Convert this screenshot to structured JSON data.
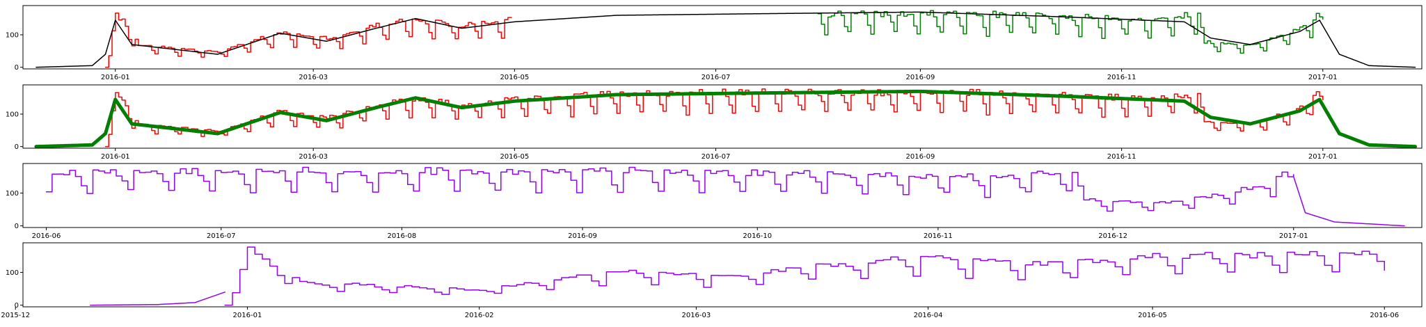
{
  "chart_data": [
    {
      "type": "line",
      "panel": 1,
      "ylim": [
        -5,
        190
      ],
      "yticks": [
        0,
        100
      ],
      "xaxis": {
        "unit": "date",
        "min": "2015-12-04",
        "max": "2017-01-31",
        "ticks": [
          "2016-01",
          "2016-03",
          "2016-05",
          "2016-07",
          "2016-09",
          "2016-11",
          "2017-01"
        ]
      },
      "series": [
        {
          "color": "#ff0000",
          "width": 1.5,
          "style": "weekly",
          "x_start": "2015-12-29",
          "x_end": "2016-04-30",
          "anchors": [
            [
              "2015-12-29",
              0
            ],
            [
              "2016-01-01",
              170
            ],
            [
              "2016-01-08",
              70
            ],
            [
              "2016-02-01",
              48
            ],
            [
              "2016-02-20",
              110
            ],
            [
              "2016-03-05",
              90
            ],
            [
              "2016-03-20",
              130
            ],
            [
              "2016-04-01",
              150
            ],
            [
              "2016-04-15",
              130
            ],
            [
              "2016-04-30",
              150
            ]
          ]
        },
        {
          "color": "#008000",
          "width": 1.5,
          "style": "weekly",
          "x_start": "2016-08-01",
          "x_end": "2017-01-01",
          "anchors": [
            [
              "2016-08-01",
              165
            ],
            [
              "2016-09-10",
              170
            ],
            [
              "2016-10-15",
              160
            ],
            [
              "2016-11-10",
              150
            ],
            [
              "2016-11-24",
              170
            ],
            [
              "2016-11-26",
              80
            ],
            [
              "2016-12-10",
              70
            ],
            [
              "2016-12-25",
              120
            ],
            [
              "2016-12-30",
              165
            ],
            [
              "2017-01-01",
              150
            ]
          ]
        },
        {
          "color": "#000000",
          "width": 1.5,
          "style": "smooth",
          "x_start": "2015-12-08",
          "x_end": "2017-01-29",
          "anchors": [
            [
              "2015-12-08",
              0
            ],
            [
              "2015-12-25",
              5
            ],
            [
              "2015-12-29",
              40
            ],
            [
              "2016-01-01",
              145
            ],
            [
              "2016-01-06",
              70
            ],
            [
              "2016-02-01",
              40
            ],
            [
              "2016-02-20",
              105
            ],
            [
              "2016-03-05",
              80
            ],
            [
              "2016-03-20",
              120
            ],
            [
              "2016-04-01",
              150
            ],
            [
              "2016-04-15",
              120
            ],
            [
              "2016-05-01",
              140
            ],
            [
              "2016-06-01",
              160
            ],
            [
              "2016-07-15",
              165
            ],
            [
              "2016-09-01",
              170
            ],
            [
              "2016-10-15",
              155
            ],
            [
              "2016-11-20",
              140
            ],
            [
              "2016-11-28",
              90
            ],
            [
              "2016-12-10",
              70
            ],
            [
              "2016-12-25",
              110
            ],
            [
              "2016-12-31",
              145
            ],
            [
              "2017-01-06",
              40
            ],
            [
              "2017-01-15",
              5
            ],
            [
              "2017-01-29",
              0
            ]
          ]
        }
      ]
    },
    {
      "type": "line",
      "panel": 2,
      "ylim": [
        -5,
        190
      ],
      "yticks": [
        0,
        100
      ],
      "xaxis": {
        "unit": "date",
        "min": "2015-12-04",
        "max": "2017-01-31",
        "ticks": [
          "2016-01",
          "2016-03",
          "2016-05",
          "2016-07",
          "2016-09",
          "2016-11",
          "2017-01"
        ]
      },
      "series": [
        {
          "color": "#ff0000",
          "width": 1.5,
          "style": "weekly",
          "x_start": "2015-12-29",
          "x_end": "2017-01-01",
          "anchors": [
            [
              "2015-12-29",
              0
            ],
            [
              "2016-01-01",
              170
            ],
            [
              "2016-01-08",
              70
            ],
            [
              "2016-02-01",
              48
            ],
            [
              "2016-02-20",
              110
            ],
            [
              "2016-03-05",
              90
            ],
            [
              "2016-03-20",
              130
            ],
            [
              "2016-04-01",
              150
            ],
            [
              "2016-04-15",
              130
            ],
            [
              "2016-05-01",
              150
            ],
            [
              "2016-06-01",
              165
            ],
            [
              "2016-07-15",
              170
            ],
            [
              "2016-09-10",
              170
            ],
            [
              "2016-10-15",
              160
            ],
            [
              "2016-11-10",
              150
            ],
            [
              "2016-11-24",
              170
            ],
            [
              "2016-11-26",
              80
            ],
            [
              "2016-12-10",
              70
            ],
            [
              "2016-12-25",
              120
            ],
            [
              "2016-12-30",
              165
            ],
            [
              "2017-01-01",
              150
            ]
          ]
        },
        {
          "color": "#008000",
          "width": 5,
          "style": "smooth",
          "x_start": "2015-12-08",
          "x_end": "2017-01-29",
          "anchors": [
            [
              "2015-12-08",
              0
            ],
            [
              "2015-12-25",
              5
            ],
            [
              "2015-12-29",
              40
            ],
            [
              "2016-01-01",
              145
            ],
            [
              "2016-01-06",
              70
            ],
            [
              "2016-02-01",
              40
            ],
            [
              "2016-02-20",
              105
            ],
            [
              "2016-03-05",
              80
            ],
            [
              "2016-03-20",
              120
            ],
            [
              "2016-04-01",
              150
            ],
            [
              "2016-04-15",
              120
            ],
            [
              "2016-05-01",
              140
            ],
            [
              "2016-06-01",
              160
            ],
            [
              "2016-07-15",
              165
            ],
            [
              "2016-09-01",
              170
            ],
            [
              "2016-10-15",
              155
            ],
            [
              "2016-11-20",
              140
            ],
            [
              "2016-11-28",
              90
            ],
            [
              "2016-12-10",
              70
            ],
            [
              "2016-12-25",
              110
            ],
            [
              "2016-12-31",
              145
            ],
            [
              "2017-01-06",
              40
            ],
            [
              "2017-01-15",
              5
            ],
            [
              "2017-01-29",
              0
            ]
          ]
        }
      ]
    },
    {
      "type": "line",
      "panel": 3,
      "ylim": [
        -5,
        190
      ],
      "yticks": [
        0,
        100
      ],
      "xaxis": {
        "unit": "date",
        "min": "2016-05-28",
        "max": "2017-01-23",
        "ticks": [
          "2016-06",
          "2016-07",
          "2016-08",
          "2016-09",
          "2016-10",
          "2016-11",
          "2016-12",
          "2017-01"
        ]
      },
      "series": [
        {
          "color": "#9400ff",
          "width": 1.5,
          "style": "weekly",
          "x_start": "2016-06-01",
          "x_end": "2017-01-01",
          "anchors": [
            [
              "2016-06-01",
              165
            ],
            [
              "2016-07-15",
              170
            ],
            [
              "2016-09-10",
              170
            ],
            [
              "2016-10-15",
              160
            ],
            [
              "2016-11-10",
              150
            ],
            [
              "2016-11-24",
              170
            ],
            [
              "2016-11-26",
              80
            ],
            [
              "2016-12-10",
              70
            ],
            [
              "2016-12-25",
              120
            ],
            [
              "2016-12-30",
              165
            ],
            [
              "2017-01-01",
              150
            ]
          ]
        },
        {
          "color": "#9400ff",
          "width": 1.5,
          "style": "smooth",
          "x_start": "2017-01-01",
          "x_end": "2017-01-20",
          "anchors": [
            [
              "2017-01-01",
              150
            ],
            [
              "2017-01-03",
              40
            ],
            [
              "2017-01-08",
              12
            ],
            [
              "2017-01-20",
              0
            ]
          ]
        }
      ]
    },
    {
      "type": "line",
      "panel": 4,
      "ylim": [
        -5,
        190
      ],
      "yticks": [
        0,
        100
      ],
      "xaxis": {
        "unit": "date",
        "min": "2015-12-02",
        "max": "2016-06-06",
        "ticks": [
          "2015-12",
          "2016-01",
          "2016-02",
          "2016-03",
          "2016-04",
          "2016-05",
          "2016-06"
        ]
      },
      "series": [
        {
          "color": "#9400ff",
          "width": 1.5,
          "style": "smooth",
          "x_start": "2015-12-11",
          "x_end": "2015-12-29",
          "anchors": [
            [
              "2015-12-11",
              0
            ],
            [
              "2015-12-20",
              2
            ],
            [
              "2015-12-25",
              8
            ],
            [
              "2015-12-29",
              40
            ]
          ]
        },
        {
          "color": "#9400ff",
          "width": 1.5,
          "style": "weekly",
          "x_start": "2015-12-29",
          "x_end": "2016-06-01",
          "anchors": [
            [
              "2015-12-29",
              0
            ],
            [
              "2016-01-01",
              170
            ],
            [
              "2016-01-08",
              70
            ],
            [
              "2016-02-01",
              48
            ],
            [
              "2016-02-20",
              110
            ],
            [
              "2016-03-05",
              90
            ],
            [
              "2016-03-20",
              130
            ],
            [
              "2016-04-01",
              150
            ],
            [
              "2016-04-15",
              130
            ],
            [
              "2016-05-01",
              150
            ],
            [
              "2016-06-01",
              165
            ]
          ]
        }
      ]
    }
  ]
}
